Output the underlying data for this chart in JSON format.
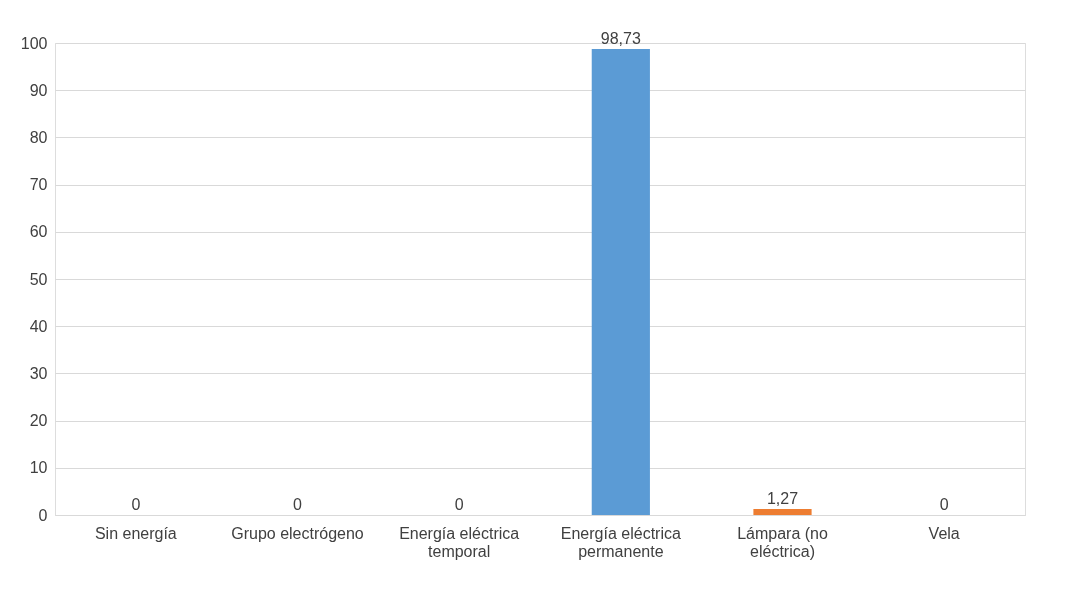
{
  "chart_data": {
    "type": "bar",
    "categories": [
      "Sin energía",
      "Grupo electrógeno",
      "Energía eléctrica temporal",
      "Energía eléctrica permanente",
      "Lámpara (no eléctrica)",
      "Vela"
    ],
    "values": [
      0,
      0,
      0,
      98.73,
      1.27,
      0
    ],
    "colors": [
      "#5b9bd5",
      "#5b9bd5",
      "#5b9bd5",
      "#5b9bd5",
      "#ed7d31",
      "#5b9bd5"
    ],
    "value_labels": [
      "0",
      "0",
      "0",
      "98,73",
      "1,27",
      "0"
    ],
    "ylim": [
      0,
      100
    ],
    "yticks": [
      0,
      10,
      20,
      30,
      40,
      50,
      60,
      70,
      80,
      90,
      100
    ],
    "grid": "y",
    "legend": false
  }
}
